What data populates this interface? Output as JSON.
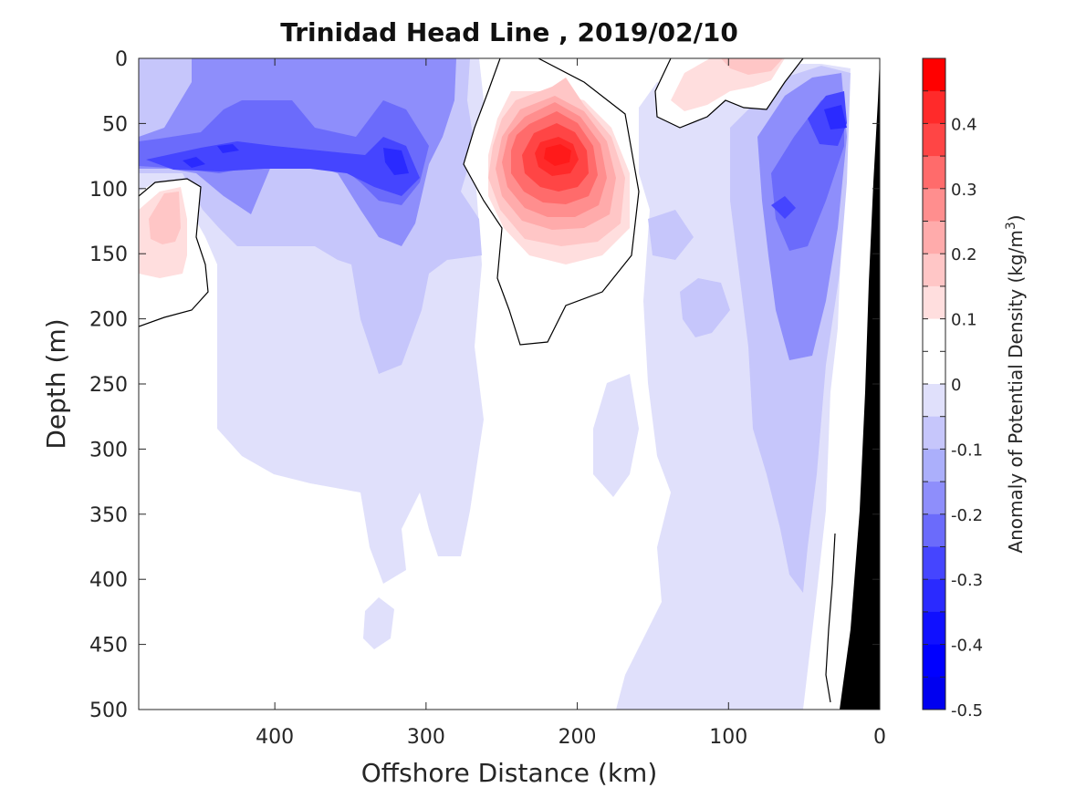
{
  "chart_data": {
    "type": "heatmap",
    "title": "Trinidad Head Line , 2019/02/10",
    "xlabel": "Offshore Distance (km)",
    "ylabel": "Depth (m)",
    "xlim": [
      490,
      0
    ],
    "ylim": [
      500,
      0
    ],
    "x_ticks": [
      "400",
      "300",
      "200",
      "100",
      "0"
    ],
    "x_tick_values": [
      400,
      300,
      200,
      100,
      0
    ],
    "y_ticks": [
      "0",
      "50",
      "100",
      "150",
      "200",
      "250",
      "300",
      "350",
      "400",
      "450",
      "500"
    ],
    "y_tick_values": [
      0,
      50,
      100,
      150,
      200,
      250,
      300,
      350,
      400,
      450,
      500
    ],
    "colorbar": {
      "label_main": "Anomaly of Potential Density (kg/m",
      "label_sup": "3",
      "label_end": ")",
      "ticks": [
        "0.4",
        "0.3",
        "0.2",
        "0.1",
        "0",
        "-0.1",
        "-0.2",
        "-0.3",
        "-0.4",
        "-0.5"
      ],
      "tick_values": [
        0.4,
        0.3,
        0.2,
        0.1,
        0,
        -0.1,
        -0.2,
        -0.3,
        -0.4,
        -0.5
      ],
      "range": [
        -0.5,
        0.5
      ],
      "step": 0.05,
      "colors_top_to_bottom": [
        "#ff0000",
        "#ff2a2a",
        "#ff4545",
        "#ff6b6b",
        "#ff8e8e",
        "#ffabab",
        "#ffc6c6",
        "#ffdede",
        "#ffffff",
        "#ffffff",
        "#e0e0fb",
        "#c6c6fb",
        "#abaffb",
        "#8e8efb",
        "#6b6bfb",
        "#4545ff",
        "#2a2aff",
        "#1010ff",
        "#0000ff",
        "#0000f0"
      ]
    },
    "features": [
      {
        "name": "warm-core-eddy",
        "x_center": 215,
        "depth_center": 75,
        "anomaly_max": 0.45
      },
      {
        "name": "offshore-positive-patch",
        "x_center": 470,
        "depth_center": 125,
        "anomaly_max": 0.15
      },
      {
        "name": "surface-positive-patch",
        "x_center": 85,
        "depth_center": 5,
        "anomaly_max": 0.15
      },
      {
        "name": "subsurface-negative-band",
        "x_center": 400,
        "depth_center": 75,
        "anomaly_min": -0.35
      },
      {
        "name": "negative-core-300km",
        "x_center": 315,
        "depth_center": 85,
        "anomaly_min": -0.35
      },
      {
        "name": "nearshore-negative-core",
        "x_center": 30,
        "depth_center": 45,
        "anomaly_min": -0.45
      },
      {
        "name": "nearshore-negative-column",
        "x_center": 50,
        "depth_center": 200,
        "anomaly_min": -0.3
      }
    ],
    "grid": false,
    "colors": {
      "positive_max": "#ff0000",
      "negative_max": "#0000ff",
      "zero": "#ffffff",
      "bathymetry": "#000000"
    }
  }
}
